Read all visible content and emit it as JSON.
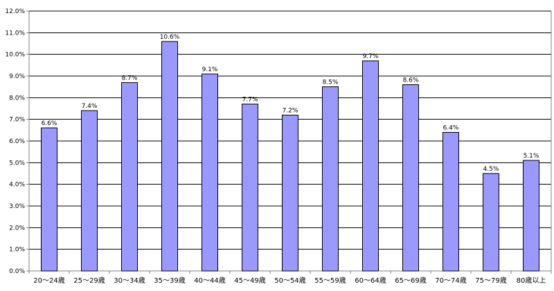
{
  "chart_data": {
    "type": "bar",
    "categories": [
      "20～24歳",
      "25～29歳",
      "30～34歳",
      "35～39歳",
      "40～44歳",
      "45～49歳",
      "50～54歳",
      "55～59歳",
      "60～64歳",
      "65～69歳",
      "70～74歳",
      "75～79歳",
      "80歳以上"
    ],
    "values": [
      6.6,
      7.4,
      8.7,
      10.6,
      9.1,
      7.7,
      7.2,
      8.5,
      9.7,
      8.6,
      6.4,
      4.5,
      5.1
    ],
    "data_labels": [
      "6.6%",
      "7.4%",
      "8.7%",
      "10.6%",
      "9.1%",
      "7.7%",
      "7.2%",
      "8.5%",
      "9.7%",
      "8.6%",
      "6.4%",
      "4.5%",
      "5.1%"
    ],
    "ylim": [
      0,
      12
    ],
    "yticks": [
      0,
      1,
      2,
      3,
      4,
      5,
      6,
      7,
      8,
      9,
      10,
      11,
      12
    ],
    "ytick_labels": [
      "0.0%",
      "1.0%",
      "2.0%",
      "3.0%",
      "4.0%",
      "5.0%",
      "6.0%",
      "7.0%",
      "8.0%",
      "9.0%",
      "10.0%",
      "11.0%",
      "12.0%"
    ],
    "grid": true,
    "legend": "none",
    "colors": {
      "bar_fill": "#9999ff",
      "bar_stroke": "#000000",
      "grid": "#000000",
      "axis": "#808080",
      "text": "#000000"
    }
  }
}
